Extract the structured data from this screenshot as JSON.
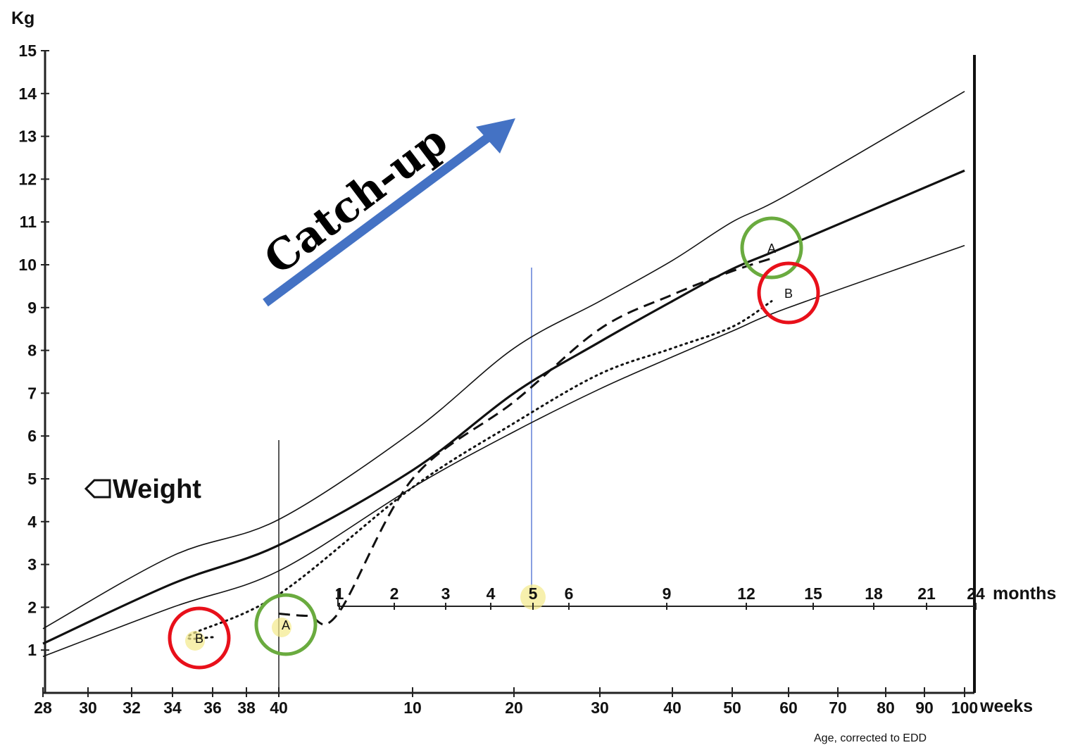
{
  "chart_data": {
    "type": "line",
    "title": "",
    "annotation_catchup": "Catch-up",
    "weight_label": "Weight",
    "ylabel": "Kg",
    "xlabel_weeks": "weeks",
    "xlabel_months": "months",
    "xnote": "Age, corrected to EDD",
    "ylim": [
      0,
      15
    ],
    "y_ticks": [
      "1",
      "2",
      "3",
      "4",
      "5",
      "6",
      "7",
      "8",
      "9",
      "10",
      "11",
      "12",
      "13",
      "14",
      "15"
    ],
    "x_ticks_weeks": [
      "28",
      "30",
      "32",
      "34",
      "36",
      "38",
      "40",
      "10",
      "20",
      "30",
      "40",
      "50",
      "60",
      "70",
      "80",
      "90",
      "100"
    ],
    "x_ticks_months": [
      "1",
      "2",
      "3",
      "4",
      "5",
      "6",
      "9",
      "12",
      "15",
      "18",
      "21",
      "24"
    ],
    "series": [
      {
        "name": "",
        "style": "thin",
        "x": [
          28,
          34,
          40,
          10,
          20,
          30,
          40,
          50,
          60,
          100
        ],
        "y": [
          1.5,
          3.2,
          4.05,
          6.1,
          8.05,
          9.15,
          10.1,
          11.0,
          11.65,
          14.05
        ]
      },
      {
        "name": "",
        "style": "thick",
        "x": [
          28,
          34,
          40,
          10,
          20,
          30,
          40,
          50,
          60,
          100
        ],
        "y": [
          1.15,
          2.55,
          3.45,
          5.2,
          7.0,
          8.2,
          9.15,
          9.9,
          10.45,
          12.2
        ]
      },
      {
        "name": "",
        "style": "thin",
        "x": [
          28,
          34,
          40,
          10,
          20,
          30,
          40,
          50,
          60,
          100
        ],
        "y": [
          0.85,
          2.0,
          2.85,
          4.8,
          6.1,
          7.1,
          7.85,
          8.45,
          9.0,
          10.45
        ]
      },
      {
        "name": "A",
        "style": "dashed",
        "x": [
          40,
          41,
          42,
          10,
          20,
          30,
          40,
          50,
          57
        ],
        "y": [
          1.85,
          1.8,
          1.85,
          5.0,
          6.8,
          8.5,
          9.3,
          9.85,
          10.15
        ]
      },
      {
        "name": "B",
        "style": "dotted",
        "x": [
          36,
          37,
          40,
          10,
          20,
          30,
          40,
          50,
          57
        ],
        "y": [
          1.3,
          1.35,
          2.3,
          4.8,
          6.3,
          7.45,
          8.05,
          8.55,
          9.15
        ]
      }
    ],
    "point_labels": [
      "A",
      "B",
      "A",
      "B"
    ],
    "highlighted_month": "5",
    "colors": {
      "arrow": "#4472c4",
      "circle_green": "#6aab3f",
      "circle_red": "#e8101a",
      "vline_blue": "#3a5fcd",
      "highlight": "#f3e98a"
    }
  }
}
